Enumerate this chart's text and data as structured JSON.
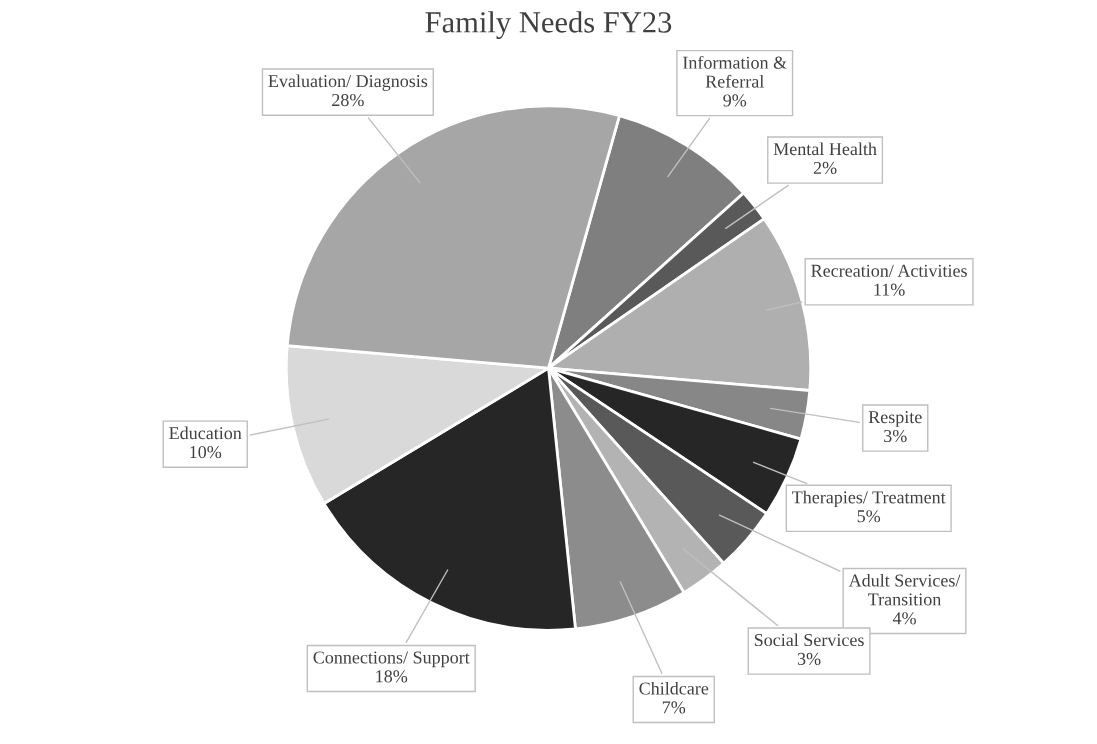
{
  "chart_data": {
    "type": "pie",
    "title": "Family Needs FY23",
    "categories": [
      "Information &\nReferral",
      "Mental Health",
      "Recreation/ Activities",
      "Respite",
      "Therapies/ Treatment",
      "Adult Services/\nTransition",
      "Social Services",
      "Childcare",
      "Connections/ Support",
      "Education",
      "Evaluation/ Diagnosis"
    ],
    "values": [
      9,
      2,
      11,
      3,
      5,
      4,
      3,
      7,
      18,
      10,
      28
    ],
    "colors": [
      "#7f7f7f",
      "#595959",
      "#afafaf",
      "#878787",
      "#262626",
      "#595959",
      "#b3b3b3",
      "#8c8c8c",
      "#262626",
      "#d9d9d9",
      "#a6a6a6"
    ],
    "value_labels": [
      "9%",
      "2%",
      "11%",
      "3%",
      "5%",
      "4%",
      "3%",
      "7%",
      "18%",
      "10%",
      "28%"
    ],
    "legend": false
  }
}
